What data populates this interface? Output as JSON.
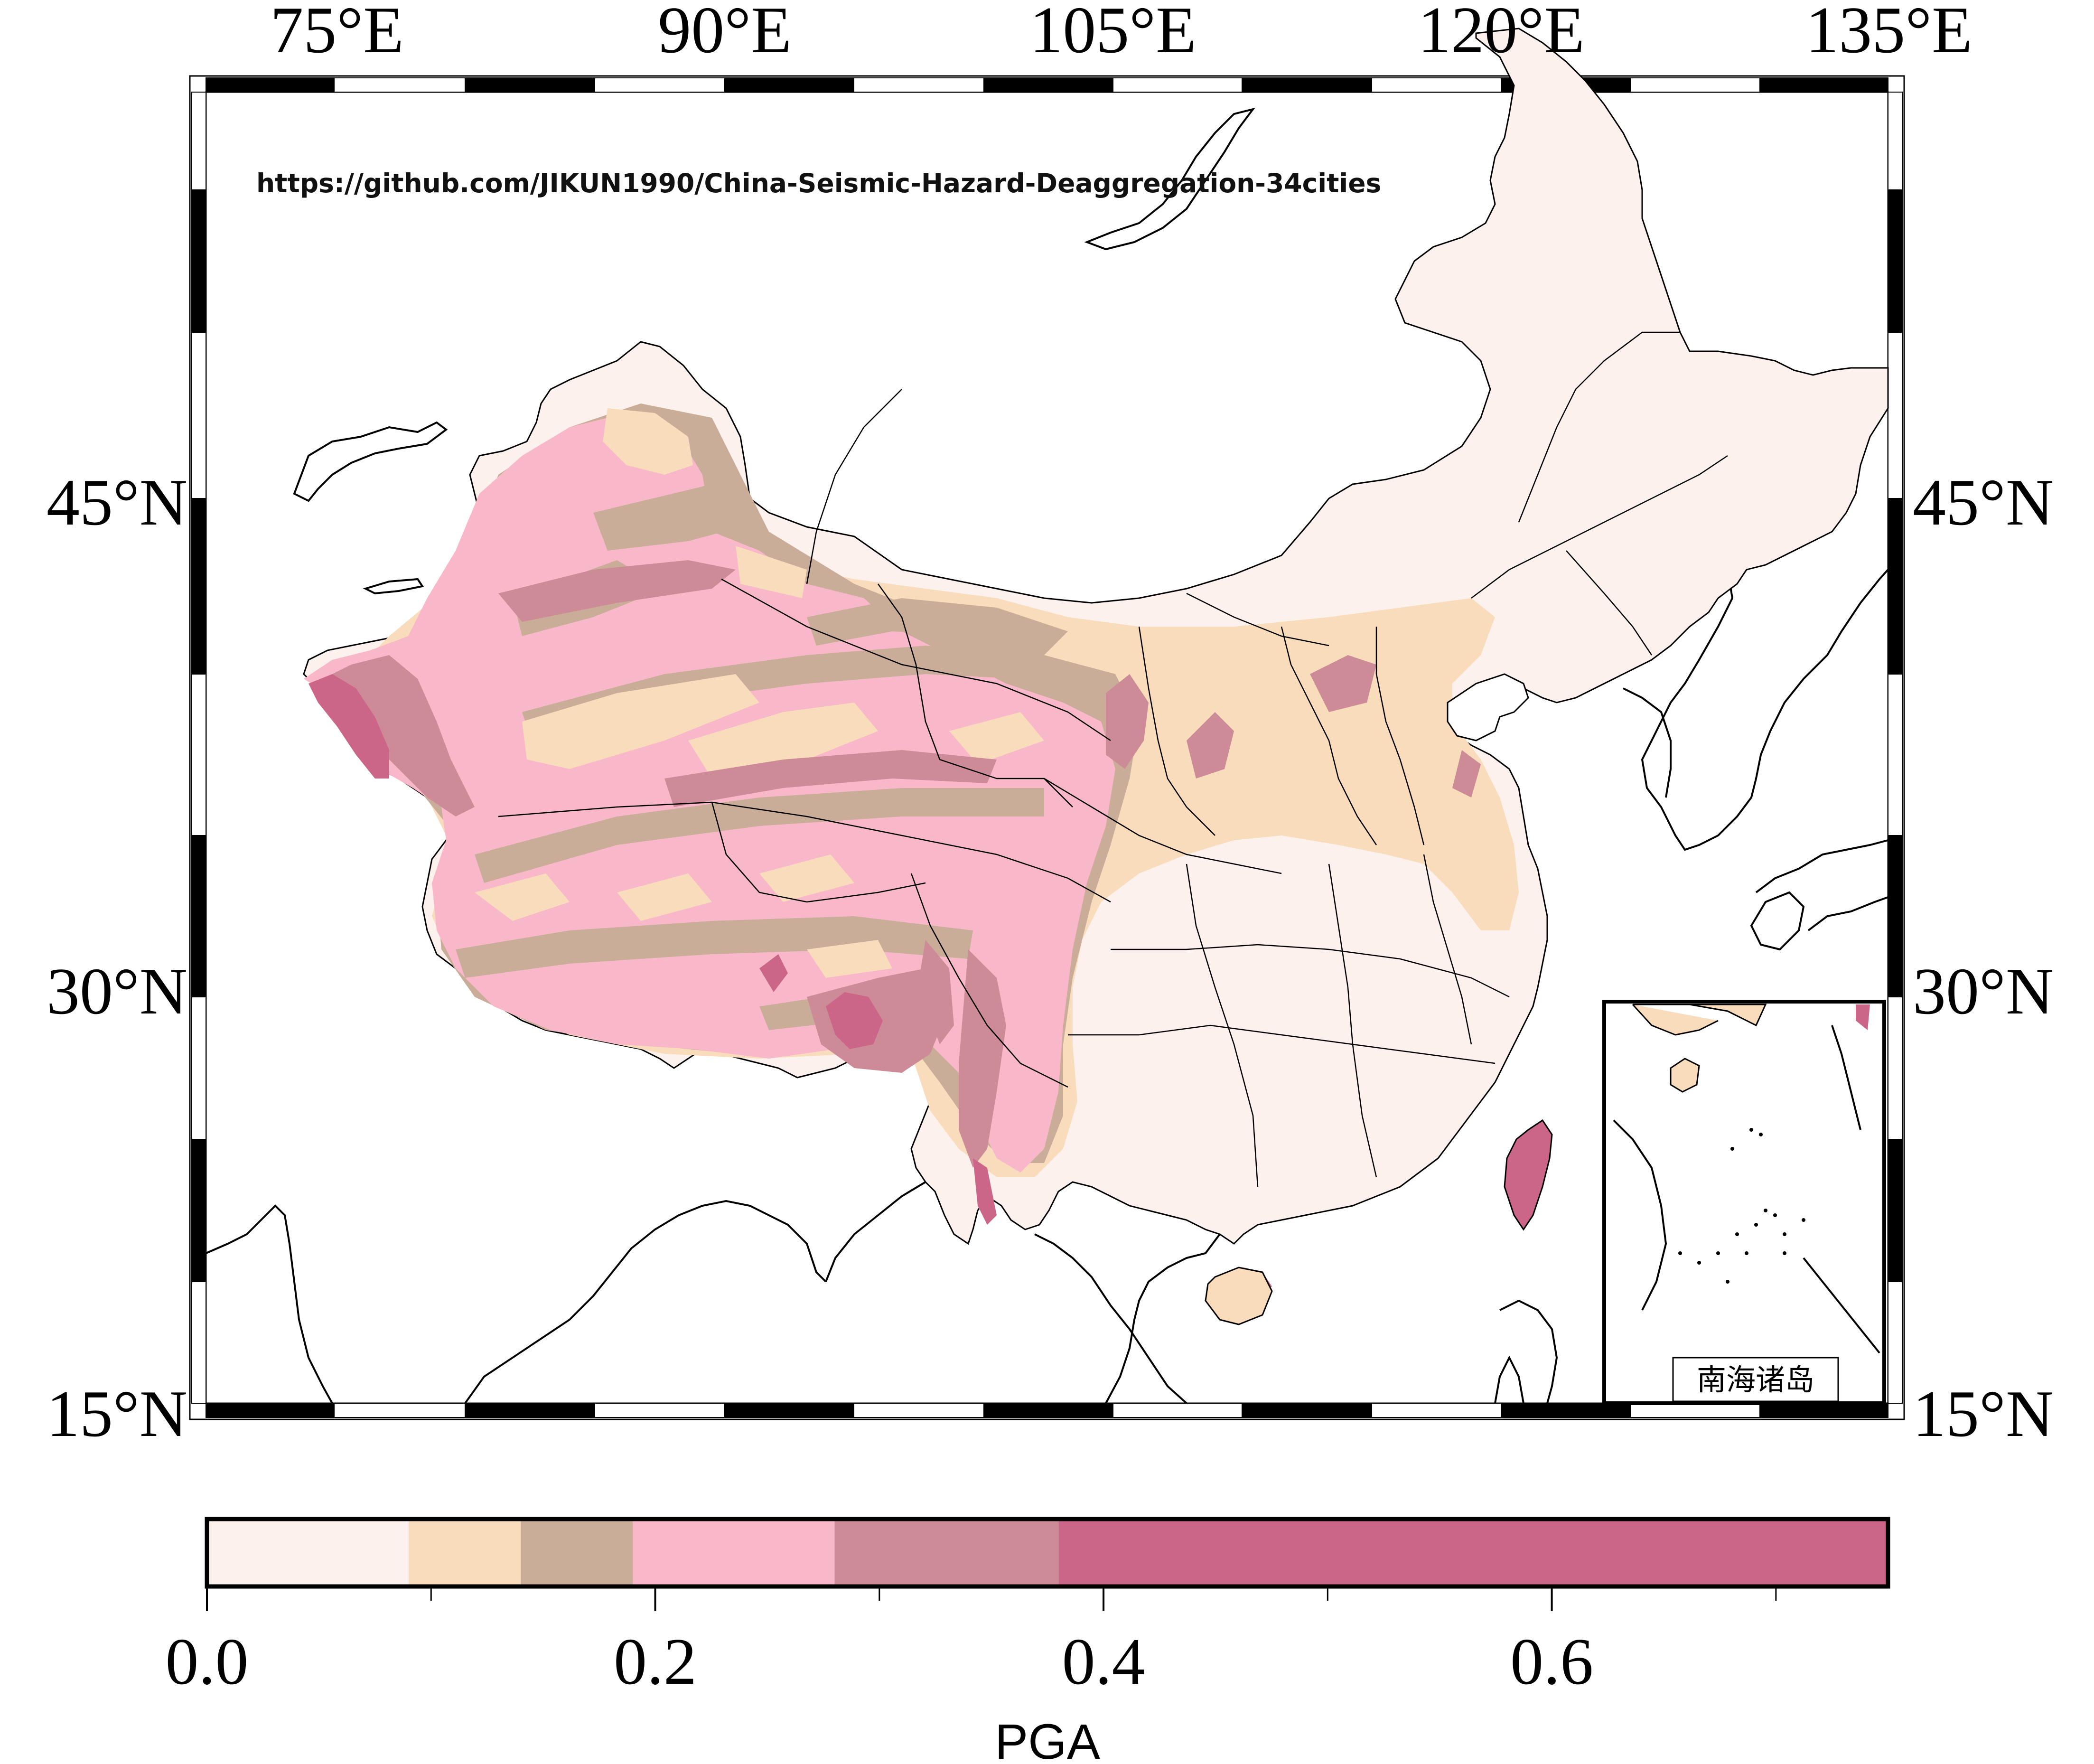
{
  "map": {
    "url_text": "https://github.com/JIKUN1990/China-Seismic-Hazard-Deaggregation-34cities",
    "lon_labels_top": [
      "75°E",
      "90°E",
      "105°E",
      "120°E",
      "135°E"
    ],
    "lat_labels_left": [
      "45°N",
      "30°N",
      "15°N"
    ],
    "lat_labels_right": [
      "45°N",
      "30°N",
      "15°N"
    ],
    "inset_label": "南海诸岛",
    "zone_colors": {
      "z0": "#fdf1ed",
      "z1": "#f9dcbc",
      "z2": "#c9ad98",
      "z3": "#f9b8c9",
      "z4": "#cd8a97",
      "z5": "#cb6688"
    }
  },
  "colorbar": {
    "title": "PGA",
    "range": [
      0.0,
      0.75
    ],
    "tick_labels": [
      "0.0",
      "0.2",
      "0.4",
      "0.6"
    ],
    "minor_ticks": [
      0.1,
      0.3,
      0.5,
      0.7
    ],
    "bins": [
      {
        "from": 0.0,
        "to": 0.09,
        "color": "#fdf1ed"
      },
      {
        "from": 0.09,
        "to": 0.14,
        "color": "#f9dcbc"
      },
      {
        "from": 0.14,
        "to": 0.19,
        "color": "#c9ad98"
      },
      {
        "from": 0.19,
        "to": 0.28,
        "color": "#f9b8c9"
      },
      {
        "from": 0.28,
        "to": 0.38,
        "color": "#cd8a97"
      },
      {
        "from": 0.38,
        "to": 0.75,
        "color": "#cb6688"
      }
    ]
  }
}
